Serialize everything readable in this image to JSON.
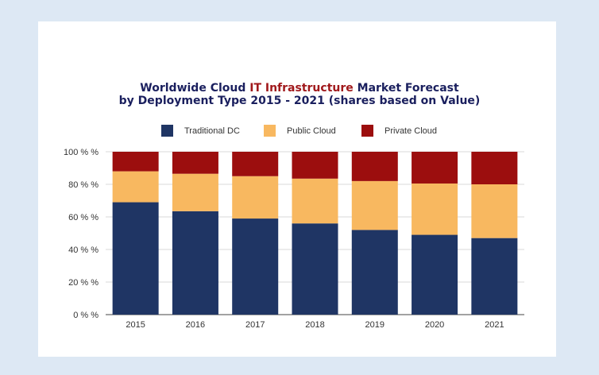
{
  "title": {
    "line1_pre": "Worldwide Cloud ",
    "line1_hl": "IT Infrastructure",
    "line1_post": " Market Forecast",
    "line2": "by Deployment Type  2015 - 2021 (shares based on Value)"
  },
  "colors": {
    "background": "#dde8f4",
    "traditional": "#1f3564",
    "public": "#f8b860",
    "private": "#9c0e0e",
    "title_dark": "#1a1f5e",
    "title_highlight": "#a0181b"
  },
  "chart_data": {
    "type": "bar",
    "stacked": true,
    "title": "Worldwide Cloud IT Infrastructure Market Forecast by Deployment Type  2015 - 2021 (shares based on Value)",
    "categories": [
      "2015",
      "2016",
      "2017",
      "2018",
      "2019",
      "2020",
      "2021"
    ],
    "series": [
      {
        "name": "Traditional DC",
        "color": "#1f3564",
        "values": [
          69,
          63.5,
          59,
          56,
          52,
          49,
          47
        ]
      },
      {
        "name": "Public Cloud",
        "color": "#f8b860",
        "values": [
          19,
          23,
          26,
          27.5,
          30,
          31.5,
          33
        ]
      },
      {
        "name": "Private Cloud",
        "color": "#9c0e0e",
        "values": [
          12,
          13.5,
          15,
          16.5,
          18,
          19.5,
          20
        ]
      }
    ],
    "yticks": [
      "0 % %",
      "20 % %",
      "40 % %",
      "60 % %",
      "80 % %",
      "100 % %"
    ],
    "ylim": [
      0,
      100
    ],
    "grid": true,
    "legend": "top"
  }
}
